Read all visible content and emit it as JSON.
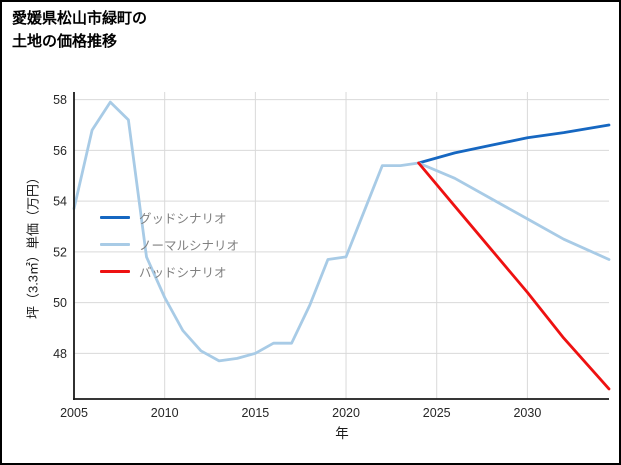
{
  "page": {
    "title_line1": "愛媛県松山市緑町の",
    "title_line2": "土地の価格推移"
  },
  "chart_data": {
    "type": "line",
    "title": "愛媛県松山市緑町の土地の価格推移",
    "xlabel": "年",
    "ylabel": "坪（3.3㎡）単価（万円）",
    "xlim": [
      2005,
      2034.5
    ],
    "ylim": [
      46.2,
      58.3
    ],
    "xticks": [
      2005,
      2010,
      2015,
      2020,
      2025,
      2030
    ],
    "yticks": [
      48,
      50,
      52,
      54,
      56,
      58
    ],
    "grid": true,
    "legend_position": "center-left",
    "colors": {
      "grid": "#d9d9d9",
      "axis": "#1a1a1a"
    },
    "series": [
      {
        "id": "good",
        "name": "グッドシナリオ",
        "color": "#1667c1",
        "x": [
          2024,
          2026,
          2028,
          2030,
          2032,
          2034.5
        ],
        "y": [
          55.5,
          55.9,
          56.2,
          56.5,
          56.7,
          57.0
        ]
      },
      {
        "id": "normal",
        "name": "ノーマルシナリオ",
        "color": "#a8cbe6",
        "x": [
          2005,
          2006,
          2007,
          2008,
          2009,
          2010,
          2011,
          2012,
          2013,
          2014,
          2015,
          2016,
          2017,
          2018,
          2019,
          2020,
          2021,
          2022,
          2023,
          2024,
          2026,
          2028,
          2030,
          2032,
          2034.5
        ],
        "y": [
          53.7,
          56.8,
          57.9,
          57.2,
          51.8,
          50.2,
          48.9,
          48.1,
          47.7,
          47.8,
          48.0,
          48.4,
          48.4,
          49.9,
          51.7,
          51.8,
          53.6,
          55.4,
          55.4,
          55.5,
          54.9,
          54.1,
          53.3,
          52.5,
          51.7
        ]
      },
      {
        "id": "bad",
        "name": "バッドシナリオ",
        "color": "#ee1111",
        "x": [
          2024,
          2026,
          2028,
          2030,
          2032,
          2034.5
        ],
        "y": [
          55.5,
          53.8,
          52.1,
          50.4,
          48.6,
          46.6
        ]
      }
    ]
  }
}
